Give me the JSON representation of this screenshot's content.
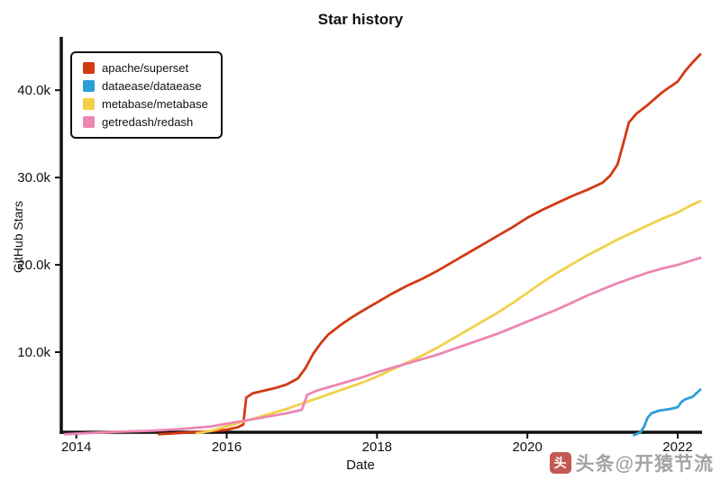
{
  "watermark": {
    "text": "头条@开猿节流",
    "icon": "toutiao-logo"
  },
  "chart_data": {
    "type": "line",
    "title": "Star history",
    "xlabel": "Date",
    "ylabel": "GitHub Stars",
    "xlim": [
      2013.8,
      2022.3
    ],
    "ylim": [
      0,
      46100
    ],
    "grid": false,
    "legend_position": "top-left",
    "x_ticks": [
      {
        "value": 2014,
        "label": "2014"
      },
      {
        "value": 2016,
        "label": "2016"
      },
      {
        "value": 2018,
        "label": "2018"
      },
      {
        "value": 2020,
        "label": "2020"
      },
      {
        "value": 2022,
        "label": "2022"
      }
    ],
    "y_ticks": [
      {
        "value": 10000,
        "label": "10.0k"
      },
      {
        "value": 20000,
        "label": "20.0k"
      },
      {
        "value": 30000,
        "label": "30.0k"
      },
      {
        "value": 40000,
        "label": "40.0k"
      }
    ],
    "series": [
      {
        "name": "apache/superset",
        "color": "#d23a14",
        "points": [
          [
            2015.1,
            600
          ],
          [
            2015.4,
            750
          ],
          [
            2015.7,
            900
          ],
          [
            2016.0,
            1100
          ],
          [
            2016.15,
            1400
          ],
          [
            2016.22,
            1700
          ],
          [
            2016.26,
            4800
          ],
          [
            2016.35,
            5300
          ],
          [
            2016.5,
            5600
          ],
          [
            2016.65,
            5900
          ],
          [
            2016.8,
            6300
          ],
          [
            2016.95,
            7000
          ],
          [
            2017.05,
            8200
          ],
          [
            2017.15,
            9800
          ],
          [
            2017.25,
            11000
          ],
          [
            2017.35,
            12000
          ],
          [
            2017.5,
            13000
          ],
          [
            2017.65,
            13900
          ],
          [
            2017.8,
            14700
          ],
          [
            2018.0,
            15700
          ],
          [
            2018.2,
            16700
          ],
          [
            2018.4,
            17600
          ],
          [
            2018.6,
            18400
          ],
          [
            2018.8,
            19300
          ],
          [
            2019.0,
            20300
          ],
          [
            2019.2,
            21300
          ],
          [
            2019.4,
            22300
          ],
          [
            2019.6,
            23300
          ],
          [
            2019.8,
            24300
          ],
          [
            2020.0,
            25400
          ],
          [
            2020.2,
            26300
          ],
          [
            2020.4,
            27100
          ],
          [
            2020.6,
            27900
          ],
          [
            2020.8,
            28600
          ],
          [
            2021.0,
            29400
          ],
          [
            2021.1,
            30200
          ],
          [
            2021.2,
            31500
          ],
          [
            2021.28,
            34000
          ],
          [
            2021.35,
            36300
          ],
          [
            2021.45,
            37300
          ],
          [
            2021.6,
            38300
          ],
          [
            2021.8,
            39800
          ],
          [
            2022.0,
            41000
          ],
          [
            2022.1,
            42200
          ],
          [
            2022.2,
            43200
          ],
          [
            2022.3,
            44100
          ]
        ]
      },
      {
        "name": "dataease/dataease",
        "color": "#2e9fd6",
        "points": [
          [
            2021.42,
            500
          ],
          [
            2021.5,
            800
          ],
          [
            2021.55,
            1400
          ],
          [
            2021.6,
            2500
          ],
          [
            2021.65,
            3000
          ],
          [
            2021.75,
            3300
          ],
          [
            2021.9,
            3500
          ],
          [
            2022.0,
            3700
          ],
          [
            2022.05,
            4300
          ],
          [
            2022.1,
            4600
          ],
          [
            2022.2,
            4900
          ],
          [
            2022.25,
            5300
          ],
          [
            2022.3,
            5700
          ]
        ]
      },
      {
        "name": "metabase/metabase",
        "color": "#f2d049",
        "points": [
          [
            2015.6,
            700
          ],
          [
            2015.8,
            1000
          ],
          [
            2016.0,
            1500
          ],
          [
            2016.2,
            2000
          ],
          [
            2016.4,
            2500
          ],
          [
            2016.6,
            3000
          ],
          [
            2016.8,
            3500
          ],
          [
            2017.0,
            4100
          ],
          [
            2017.2,
            4700
          ],
          [
            2017.4,
            5300
          ],
          [
            2017.6,
            5900
          ],
          [
            2017.8,
            6500
          ],
          [
            2018.0,
            7200
          ],
          [
            2018.2,
            8000
          ],
          [
            2018.4,
            8800
          ],
          [
            2018.6,
            9600
          ],
          [
            2018.8,
            10500
          ],
          [
            2019.0,
            11500
          ],
          [
            2019.2,
            12500
          ],
          [
            2019.4,
            13500
          ],
          [
            2019.6,
            14500
          ],
          [
            2019.8,
            15600
          ],
          [
            2020.0,
            16800
          ],
          [
            2020.2,
            18000
          ],
          [
            2020.4,
            19100
          ],
          [
            2020.6,
            20100
          ],
          [
            2020.8,
            21100
          ],
          [
            2021.0,
            22000
          ],
          [
            2021.2,
            22900
          ],
          [
            2021.4,
            23700
          ],
          [
            2021.6,
            24500
          ],
          [
            2021.8,
            25300
          ],
          [
            2022.0,
            26000
          ],
          [
            2022.15,
            26700
          ],
          [
            2022.3,
            27300
          ]
        ]
      },
      {
        "name": "getredash/redash",
        "color": "#ed86b3",
        "points": [
          [
            2013.85,
            600
          ],
          [
            2014.2,
            750
          ],
          [
            2014.6,
            900
          ],
          [
            2015.0,
            1000
          ],
          [
            2015.4,
            1200
          ],
          [
            2015.8,
            1500
          ],
          [
            2016.0,
            1800
          ],
          [
            2016.2,
            2100
          ],
          [
            2016.4,
            2400
          ],
          [
            2016.6,
            2700
          ],
          [
            2016.8,
            3000
          ],
          [
            2017.0,
            3400
          ],
          [
            2017.07,
            5100
          ],
          [
            2017.2,
            5600
          ],
          [
            2017.4,
            6100
          ],
          [
            2017.6,
            6600
          ],
          [
            2017.8,
            7100
          ],
          [
            2018.0,
            7700
          ],
          [
            2018.2,
            8200
          ],
          [
            2018.4,
            8700
          ],
          [
            2018.6,
            9200
          ],
          [
            2018.8,
            9700
          ],
          [
            2019.0,
            10300
          ],
          [
            2019.2,
            10900
          ],
          [
            2019.4,
            11500
          ],
          [
            2019.6,
            12100
          ],
          [
            2019.8,
            12800
          ],
          [
            2020.0,
            13500
          ],
          [
            2020.2,
            14200
          ],
          [
            2020.4,
            14900
          ],
          [
            2020.6,
            15700
          ],
          [
            2020.8,
            16500
          ],
          [
            2021.0,
            17200
          ],
          [
            2021.2,
            17900
          ],
          [
            2021.4,
            18500
          ],
          [
            2021.6,
            19100
          ],
          [
            2021.8,
            19600
          ],
          [
            2022.0,
            20000
          ],
          [
            2022.15,
            20400
          ],
          [
            2022.3,
            20800
          ]
        ]
      }
    ]
  }
}
